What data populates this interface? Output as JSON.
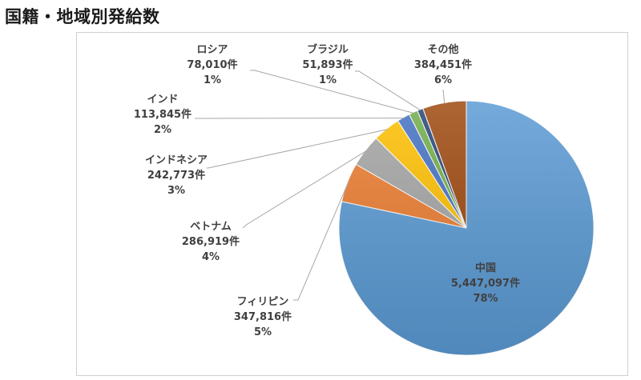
{
  "page": {
    "title": "国籍・地域別発給数"
  },
  "chart_data": {
    "type": "pie",
    "title": "",
    "start_angle_deg": 0,
    "direction": "clockwise",
    "legend": "none",
    "slices": [
      {
        "name": "中国",
        "count_label": "5,447,097件",
        "percent_label": "78%",
        "value": 5447097,
        "color": "#5b9bd5"
      },
      {
        "name": "フィリピン",
        "count_label": "347,816件",
        "percent_label": "5%",
        "value": 347816,
        "color": "#ed7d31"
      },
      {
        "name": "ベトナム",
        "count_label": "286,919件",
        "percent_label": "4%",
        "value": 286919,
        "color": "#a5a5a5"
      },
      {
        "name": "インドネシア",
        "count_label": "242,773件",
        "percent_label": "3%",
        "value": 242773,
        "color": "#ffc000"
      },
      {
        "name": "インド",
        "count_label": "113,845件",
        "percent_label": "2%",
        "value": 113845,
        "color": "#4472c4"
      },
      {
        "name": "ロシア",
        "count_label": "78,010件",
        "percent_label": "1%",
        "value": 78010,
        "color": "#70ad47"
      },
      {
        "name": "ブラジル",
        "count_label": "51,893件",
        "percent_label": "1%",
        "value": 51893,
        "color": "#264478"
      },
      {
        "name": "その他",
        "count_label": "384,451件",
        "percent_label": "6%",
        "value": 384451,
        "color": "#9e480e"
      }
    ]
  }
}
